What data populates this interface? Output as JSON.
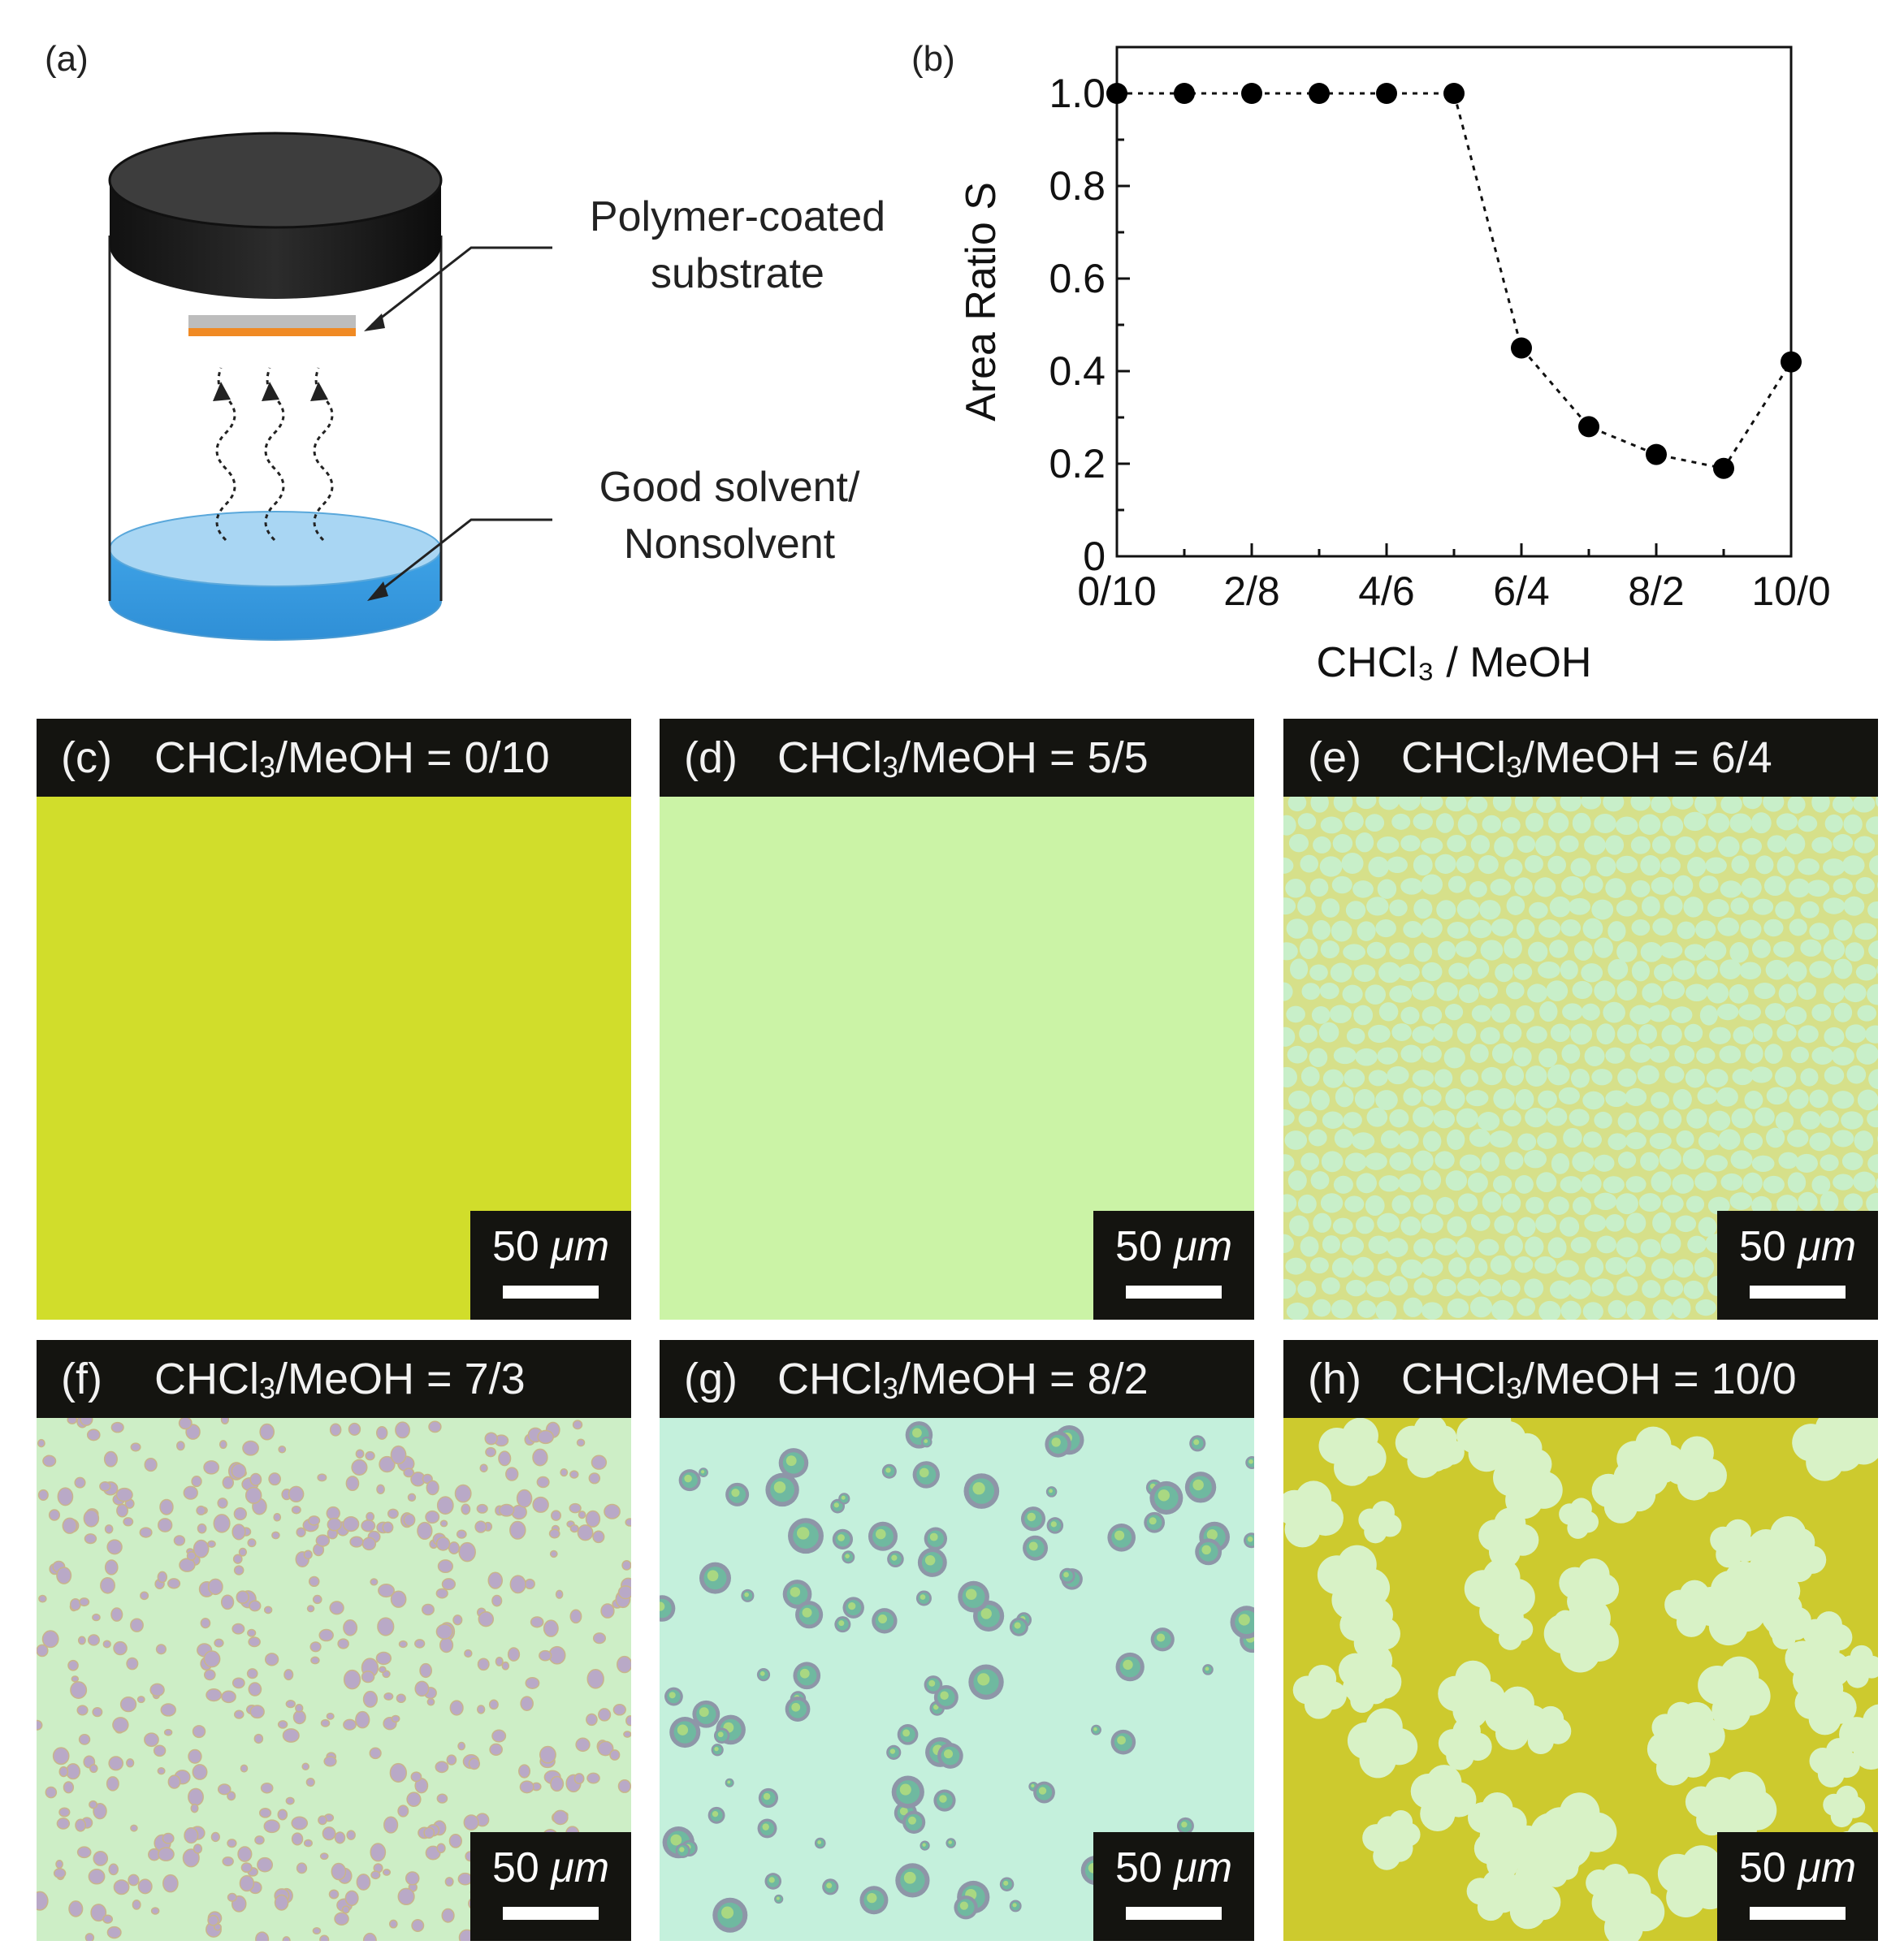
{
  "panel_a": {
    "letter": "(a)",
    "labels": {
      "substrate_line1": "Polymer-coated",
      "substrate_line2": "substrate",
      "solvent_line1": "Good solvent/",
      "solvent_line2": "Nonsolvent"
    },
    "colors": {
      "lid": "#2a2a2a",
      "substrate_top": "#bdbdbd",
      "substrate_bottom": "#f08a24",
      "liquid": "#4aa8e8"
    }
  },
  "panel_b": {
    "letter": "(b)",
    "chart_data": {
      "type": "scatter",
      "x": [
        0,
        1,
        2,
        3,
        4,
        5,
        6,
        7,
        8,
        9,
        10
      ],
      "values": [
        1.0,
        1.0,
        1.0,
        1.0,
        1.0,
        1.0,
        0.45,
        0.28,
        0.22,
        0.19,
        0.42
      ],
      "xlabel": "CHCl₃ / MeOH",
      "ylabel": "Area Ratio S",
      "xlim": [
        0,
        10
      ],
      "ylim": [
        0,
        1.1
      ],
      "xticks": [
        {
          "v": 0,
          "label": "0/10"
        },
        {
          "v": 2,
          "label": "2/8"
        },
        {
          "v": 4,
          "label": "4/6"
        },
        {
          "v": 6,
          "label": "6/4"
        },
        {
          "v": 8,
          "label": "8/2"
        },
        {
          "v": 10,
          "label": "10/0"
        }
      ],
      "yticks": [
        {
          "v": 0,
          "label": "0"
        },
        {
          "v": 0.2,
          "label": "0.2"
        },
        {
          "v": 0.4,
          "label": "0.4"
        },
        {
          "v": 0.6,
          "label": "0.6"
        },
        {
          "v": 0.8,
          "label": "0.8"
        },
        {
          "v": 1.0,
          "label": "1.0"
        }
      ],
      "line_style": "dotted",
      "marker": "filled-circle",
      "grid": false
    }
  },
  "micrographs": [
    {
      "letter": "(c)",
      "ratio": "0/10",
      "scale": "50",
      "unit": "μm",
      "pattern": "uniform",
      "colors": [
        "#d8e22c",
        "#c9d82a"
      ]
    },
    {
      "letter": "(d)",
      "ratio": "5/5",
      "scale": "50",
      "unit": "μm",
      "pattern": "uniform",
      "colors": [
        "#c8f0a8",
        "#cdf5a4"
      ]
    },
    {
      "letter": "(e)",
      "ratio": "6/4",
      "scale": "50",
      "unit": "μm",
      "pattern": "cells",
      "colors": [
        "#d6e08a",
        "#c8efc9"
      ]
    },
    {
      "letter": "(f)",
      "ratio": "7/3",
      "scale": "50",
      "unit": "μm",
      "pattern": "dots",
      "colors": [
        "#cdeec6",
        "#b9a9c7"
      ]
    },
    {
      "letter": "(g)",
      "ratio": "8/2",
      "scale": "50",
      "unit": "μm",
      "pattern": "droplets",
      "colors": [
        "#c4f0dc",
        "#6fb9a0"
      ]
    },
    {
      "letter": "(h)",
      "ratio": "10/0",
      "scale": "50",
      "unit": "μm",
      "pattern": "flowers",
      "colors": [
        "#cdca2e",
        "#d8f2c6"
      ]
    }
  ],
  "header_prefix": "CHCl",
  "header_sub": "3",
  "header_suffix": "/MeOH = "
}
